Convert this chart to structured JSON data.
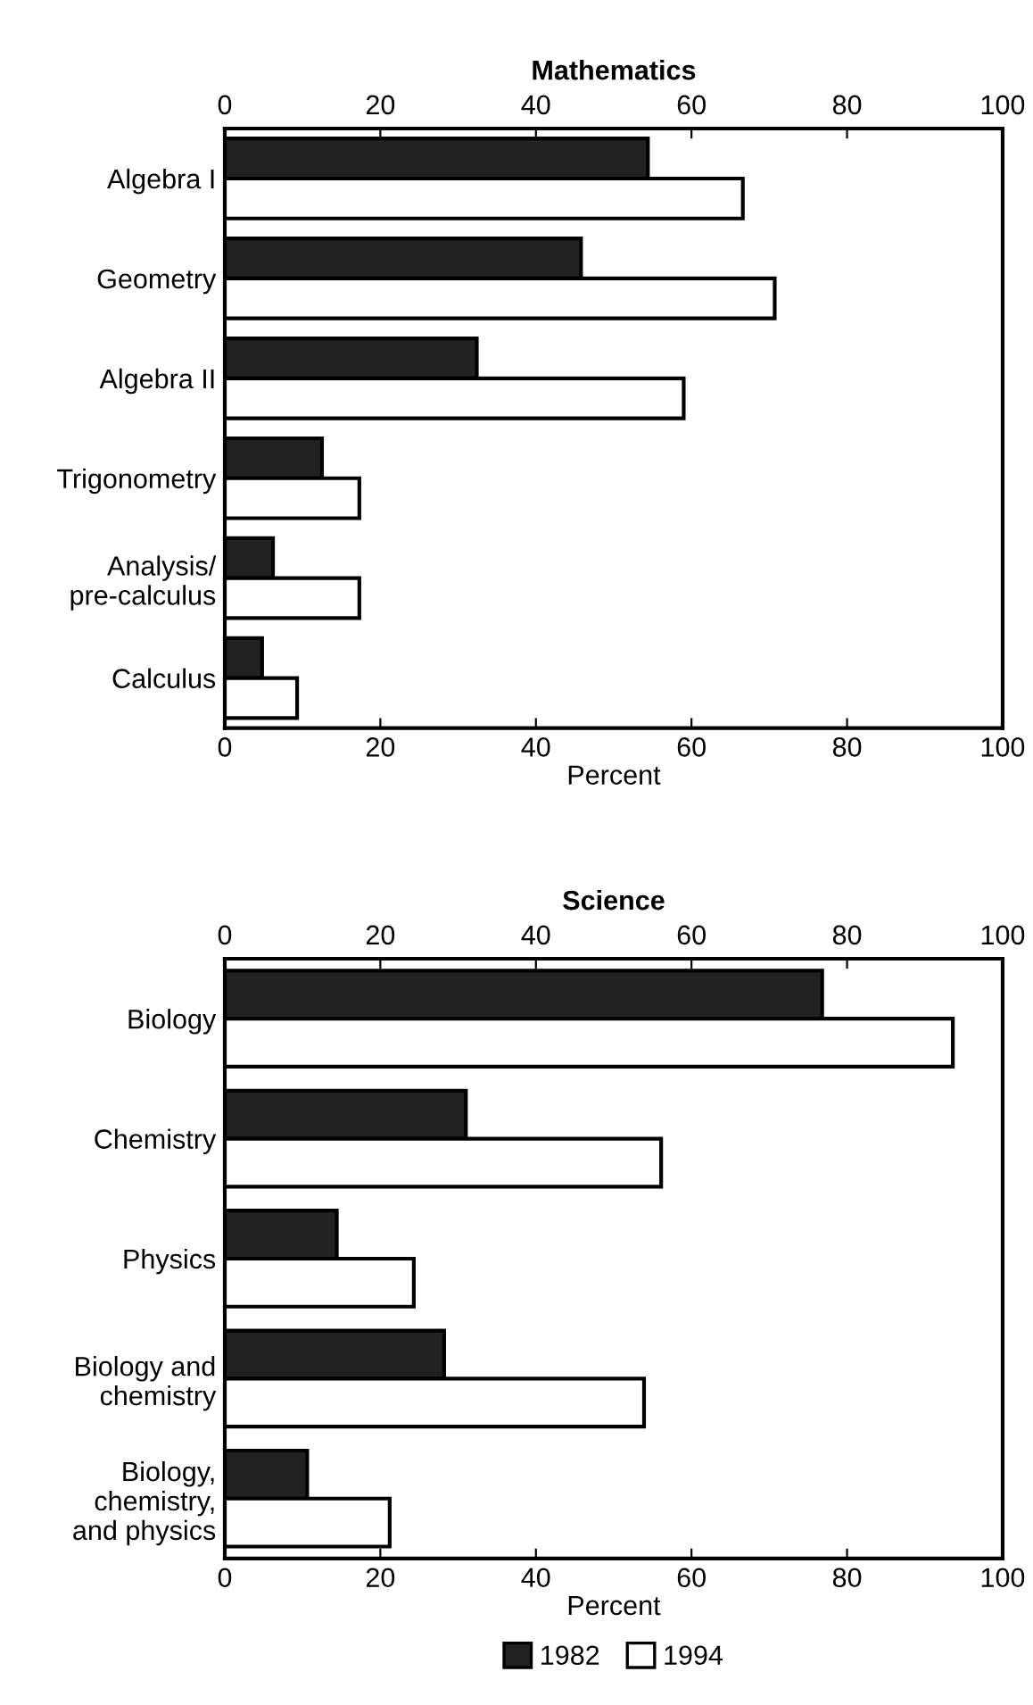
{
  "chart_data": [
    {
      "type": "bar",
      "orientation": "horizontal",
      "title": "Mathematics",
      "xlabel": "Percent",
      "categories": [
        "Algebra I",
        "Geometry",
        "Algebra II",
        "Trigonometry",
        "Analysis/\npre-calculus",
        "Calculus"
      ],
      "series": [
        {
          "color": "#222222",
          "values": [
            54.4,
            45.8,
            32.4,
            12.5,
            6.2,
            4.8
          ]
        },
        {
          "color": "#ffffff",
          "values": [
            66.6,
            70.7,
            59.0,
            17.3,
            17.3,
            9.3
          ]
        }
      ],
      "xlim": [
        0,
        100
      ],
      "xticks": [
        0,
        20,
        40,
        60,
        80,
        100
      ],
      "x2lim": [
        0,
        100
      ],
      "x2ticks": [
        0,
        20,
        40,
        60,
        80,
        100
      ],
      "grid": false,
      "legend": false
    },
    {
      "type": "bar",
      "orientation": "horizontal",
      "title": "Science",
      "xlabel": "Percent",
      "categories": [
        "Biology",
        "Chemistry",
        "Physics",
        "Biology and\nchemistry",
        "Biology,\nchemistry,\nand physics"
      ],
      "series": [
        {
          "name": "1982",
          "color": "#222222",
          "values": [
            76.8,
            31.0,
            14.4,
            28.2,
            10.6
          ]
        },
        {
          "name": "1994",
          "color": "#ffffff",
          "values": [
            93.6,
            56.1,
            24.3,
            53.9,
            21.2
          ]
        }
      ],
      "xlim": [
        0,
        100
      ],
      "xticks": [
        0,
        20,
        40,
        60,
        80,
        100
      ],
      "x2lim": [
        0,
        100
      ],
      "x2ticks": [
        0,
        20,
        40,
        60,
        80,
        100
      ],
      "grid": false,
      "legend": "bottom"
    }
  ]
}
